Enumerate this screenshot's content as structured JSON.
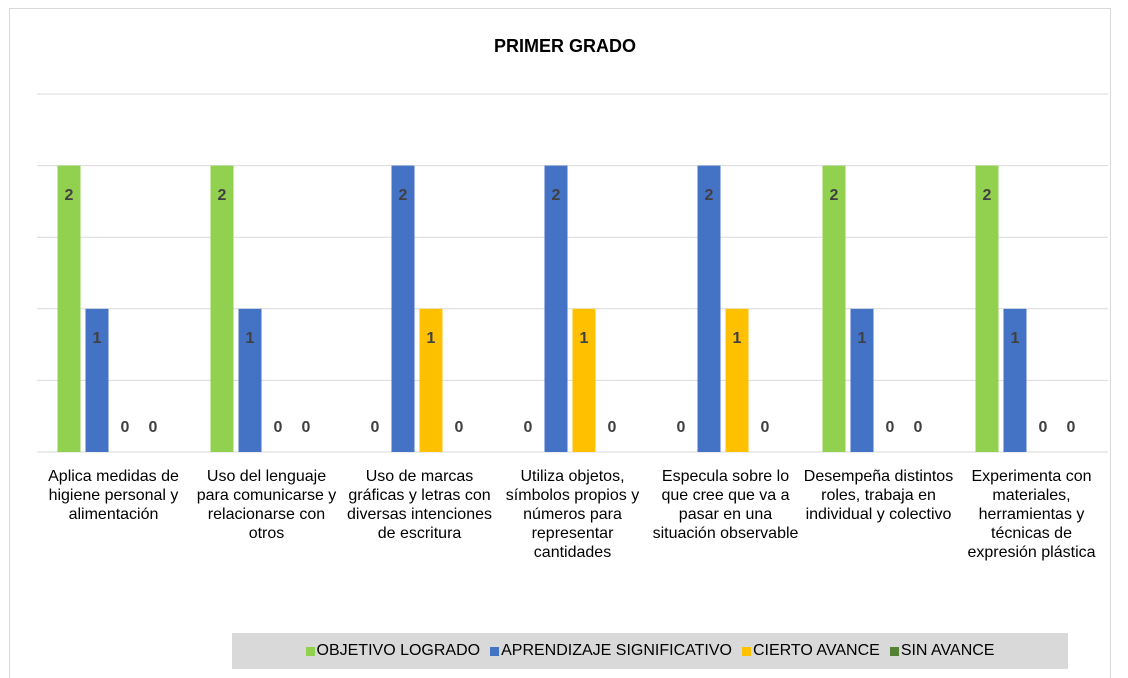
{
  "chart_data": {
    "type": "bar",
    "title": "PRIMER GRADO",
    "categories": [
      "Aplica medidas de higiene personal y alimentación",
      "Uso del lenguaje para comunicarse y relacionarse con otros",
      "Uso de marcas gráficas y letras con diversas intenciones de escritura",
      "Utiliza objetos, símbolos propios y números para representar cantidades",
      "Especula sobre lo que cree que va a pasar en una situación observable",
      "Desempeña distintos roles, trabaja en individual y colectivo",
      "Experimenta con materiales, herramientas y técnicas de expresión plástica"
    ],
    "series": [
      {
        "name": "OBJETIVO LOGRADO",
        "color": "#92d050",
        "values": [
          2,
          2,
          0,
          0,
          0,
          2,
          2
        ]
      },
      {
        "name": "APRENDIZAJE SIGNIFICATIVO",
        "color": "#4472c4",
        "values": [
          1,
          1,
          2,
          2,
          2,
          1,
          1
        ]
      },
      {
        "name": "CIERTO AVANCE",
        "color": "#ffc000",
        "values": [
          0,
          0,
          1,
          1,
          1,
          0,
          0
        ]
      },
      {
        "name": "SIN AVANCE",
        "color": "#548235",
        "values": [
          0,
          0,
          0,
          0,
          0,
          0,
          0
        ]
      }
    ],
    "ylim": [
      0,
      2.5
    ],
    "yticks": [
      0,
      0.5,
      1,
      1.5,
      2,
      2.5
    ],
    "grid": true,
    "legend": "bottom"
  }
}
